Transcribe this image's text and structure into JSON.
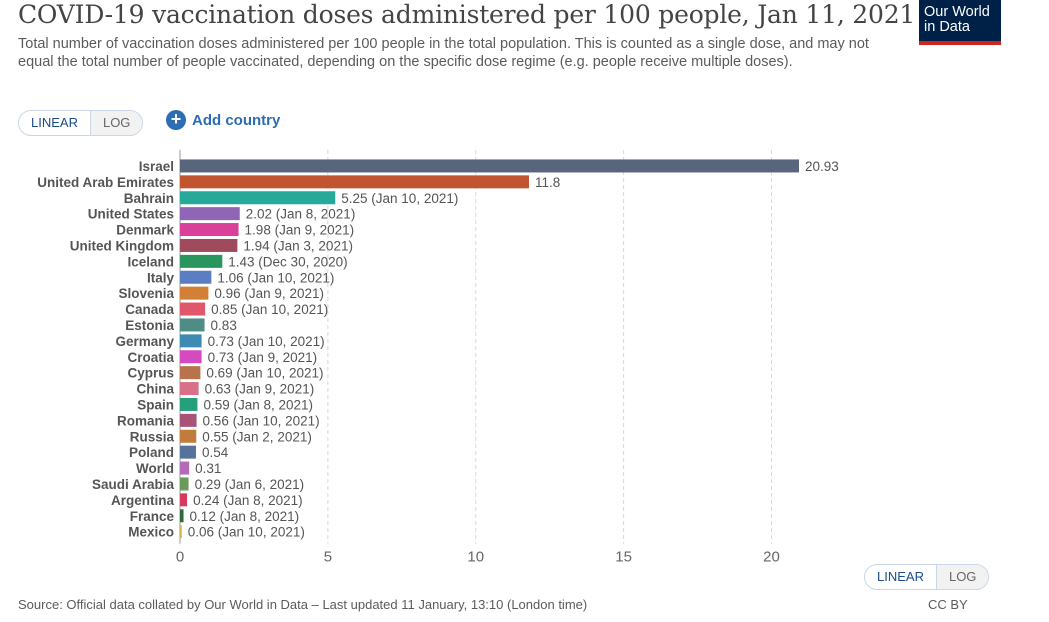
{
  "header": {
    "title": "COVID-19 vaccination doses administered per 100 people, Jan 11, 2021",
    "subtitle": "Total number of vaccination doses administered per 100 people in the total population. This is counted as a single dose, and may not equal the total number of people vaccinated, depending on the specific dose regime (e.g. people receive multiple doses).",
    "logo_line1": "Our World",
    "logo_line2": "in Data"
  },
  "controls": {
    "linear_label": "LINEAR",
    "log_label": "LOG",
    "add_country_label": "Add country"
  },
  "footer": {
    "source": "Source: Official data collated by Our World in Data – Last updated 11 January, 13:10 (London time)",
    "license": "CC BY"
  },
  "chart_data": {
    "type": "bar",
    "orientation": "horizontal",
    "xlim": [
      0,
      20.93
    ],
    "xticks": [
      0,
      5,
      10,
      15,
      20
    ],
    "grid": "vertical dashed",
    "categories": [
      "Israel",
      "United Arab Emirates",
      "Bahrain",
      "United States",
      "Denmark",
      "United Kingdom",
      "Iceland",
      "Italy",
      "Slovenia",
      "Canada",
      "Estonia",
      "Germany",
      "Croatia",
      "Cyprus",
      "China",
      "Spain",
      "Romania",
      "Russia",
      "Poland",
      "World",
      "Saudi Arabia",
      "Argentina",
      "France",
      "Mexico"
    ],
    "values": [
      20.93,
      11.8,
      5.25,
      2.02,
      1.98,
      1.94,
      1.43,
      1.06,
      0.96,
      0.85,
      0.83,
      0.73,
      0.73,
      0.69,
      0.63,
      0.59,
      0.56,
      0.55,
      0.54,
      0.31,
      0.29,
      0.24,
      0.12,
      0.06
    ],
    "labels": [
      "20.93",
      "11.8",
      "5.25 (Jan 10, 2021)",
      "2.02 (Jan 8, 2021)",
      "1.98 (Jan 9, 2021)",
      "1.94 (Jan 3, 2021)",
      "1.43 (Dec 30, 2020)",
      "1.06 (Jan 10, 2021)",
      "0.96 (Jan 9, 2021)",
      "0.85 (Jan 10, 2021)",
      "0.83",
      "0.73 (Jan 10, 2021)",
      "0.73 (Jan 9, 2021)",
      "0.69 (Jan 10, 2021)",
      "0.63 (Jan 9, 2021)",
      "0.59 (Jan 8, 2021)",
      "0.56 (Jan 10, 2021)",
      "0.55 (Jan 2, 2021)",
      "0.54",
      "0.31",
      "0.29 (Jan 6, 2021)",
      "0.24 (Jan 8, 2021)",
      "0.12 (Jan 8, 2021)",
      "0.06 (Jan 10, 2021)"
    ],
    "colors": [
      "#58657b",
      "#c05530",
      "#27a99a",
      "#8e66b5",
      "#d9409a",
      "#a04a5e",
      "#2b9560",
      "#5b7dc2",
      "#d47f36",
      "#e0566a",
      "#4f8c86",
      "#3d8bb3",
      "#d64abf",
      "#b8734a",
      "#d9708a",
      "#26a07c",
      "#a85277",
      "#c07c3a",
      "#57739b",
      "#b56bb8",
      "#6a9a5b",
      "#d63b5e",
      "#2f6b39",
      "#d9b24a"
    ]
  }
}
